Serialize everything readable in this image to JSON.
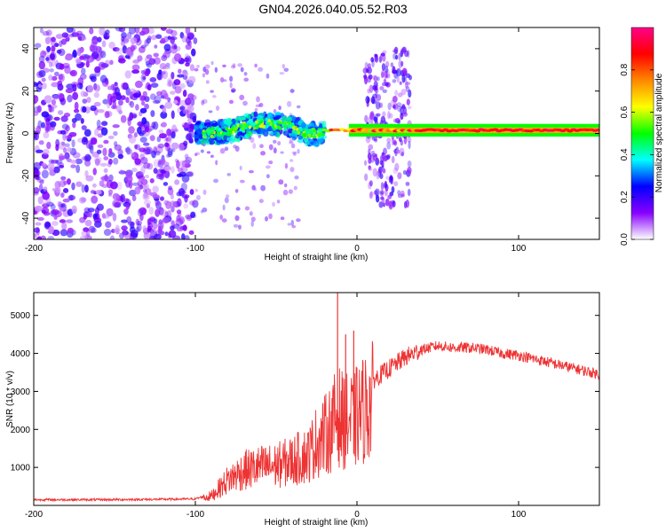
{
  "title": "GN04.2026.040.05.52.R03",
  "chart_data": [
    {
      "type": "heatmap",
      "title": "GN04.2026.040.05.52.R03",
      "xlabel": "Height of straight line (km)",
      "ylabel": "Frequency (Hz)",
      "xlim": [
        -200,
        150
      ],
      "ylim": [
        -50,
        50
      ],
      "xticks": [
        -200,
        -100,
        0,
        100
      ],
      "yticks": [
        -40,
        -20,
        0,
        20,
        40
      ],
      "colorbar": {
        "label": "Normalized spectral amplitude",
        "range": [
          0.0,
          1.0
        ],
        "ticks": [
          0.0,
          0.2,
          0.4,
          0.6,
          0.8
        ],
        "tick_labels": [
          "0.0",
          "0.2",
          "0.4",
          "0.6",
          "0.8"
        ],
        "colormap": [
          "#ffffff",
          "#8800ff",
          "#0000ff",
          "#00ffff",
          "#00ff00",
          "#ffff00",
          "#ff8800",
          "#ff0000",
          "#ff0088"
        ]
      },
      "regions": [
        {
          "description": "broadband noise",
          "x_range": [
            -200,
            -100
          ],
          "f_range": [
            -50,
            50
          ],
          "amplitude": 0.15
        },
        {
          "description": "signal onset",
          "x_range": [
            -100,
            -20
          ],
          "f_center_points": [
            [
              -100,
              0
            ],
            [
              -80,
              1
            ],
            [
              -60,
              5
            ],
            [
              -45,
              4
            ],
            [
              -30,
              0
            ],
            [
              -20,
              0
            ]
          ],
          "amplitude": 0.35
        },
        {
          "description": "burst",
          "x_range": [
            5,
            33
          ],
          "f_range": [
            -35,
            40
          ],
          "amplitude": 0.15
        },
        {
          "description": "stable carrier",
          "x_range": [
            -20,
            150
          ],
          "f_center": 1.5,
          "amplitude": 0.9
        }
      ]
    },
    {
      "type": "line",
      "xlabel": "Height of straight line (km)",
      "ylabel": "SNR (10 * v/v)",
      "xlim": [
        -200,
        150
      ],
      "ylim": [
        0,
        5600
      ],
      "xticks": [
        -200,
        -100,
        0,
        100
      ],
      "yticks": [
        1000,
        2000,
        3000,
        4000,
        5000
      ],
      "color": "#ee3333",
      "series": [
        {
          "name": "SNR",
          "x": [
            -200,
            -160,
            -120,
            -100,
            -90,
            -80,
            -70,
            -60,
            -50,
            -40,
            -30,
            -25,
            -20,
            -15,
            -12,
            -10,
            -5,
            0,
            10,
            20,
            30,
            40,
            50,
            60,
            70,
            80,
            90,
            100,
            110,
            120,
            130,
            140,
            150
          ],
          "values": [
            150,
            150,
            160,
            170,
            300,
            800,
            1100,
            1200,
            1250,
            1400,
            1600,
            2000,
            2200,
            2500,
            2900,
            2700,
            2600,
            2800,
            3300,
            3600,
            3900,
            4100,
            4200,
            4150,
            4150,
            4100,
            4000,
            3950,
            3850,
            3750,
            3650,
            3550,
            3450
          ]
        }
      ],
      "spikes": [
        [
          -12,
          5600
        ],
        [
          -2,
          4600
        ],
        [
          -7,
          4500
        ]
      ]
    }
  ]
}
